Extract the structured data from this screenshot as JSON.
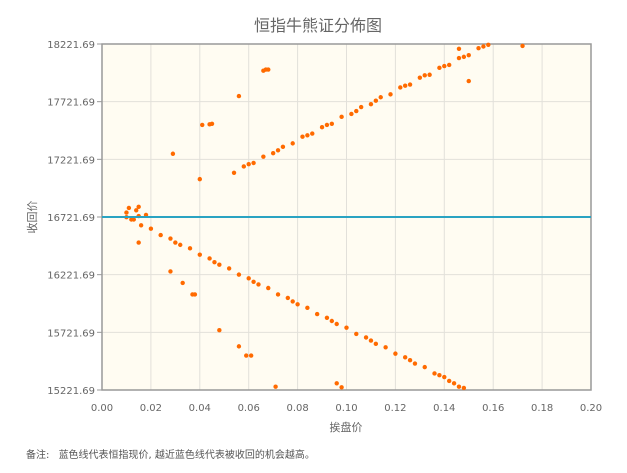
{
  "chart_data": {
    "type": "scatter",
    "title": "恒指牛熊证分佈图",
    "xlabel": "挨盘价",
    "ylabel": "收回价",
    "xlim": [
      0,
      0.2
    ],
    "ylim": [
      15221.69,
      18221.69
    ],
    "xticks": [
      "0.00",
      "0.02",
      "0.04",
      "0.06",
      "0.08",
      "0.10",
      "0.12",
      "0.14",
      "0.16",
      "0.18",
      "0.20"
    ],
    "yticks": [
      "15221.69",
      "15721.69",
      "16221.69",
      "16721.69",
      "17221.69",
      "17721.69",
      "18221.69"
    ],
    "grid": true,
    "reference_line": {
      "y": 16721.69,
      "color": "#2aa3c2"
    },
    "point_color": "#ff6a00",
    "background_color": "#fffcf2",
    "points": [
      [
        0.054,
        17105
      ],
      [
        0.058,
        17160
      ],
      [
        0.062,
        17190
      ],
      [
        0.066,
        17245
      ],
      [
        0.07,
        17275
      ],
      [
        0.074,
        17330
      ],
      [
        0.078,
        17360
      ],
      [
        0.082,
        17418
      ],
      [
        0.086,
        17445
      ],
      [
        0.09,
        17500
      ],
      [
        0.094,
        17530
      ],
      [
        0.098,
        17590
      ],
      [
        0.102,
        17615
      ],
      [
        0.106,
        17675
      ],
      [
        0.11,
        17700
      ],
      [
        0.114,
        17760
      ],
      [
        0.118,
        17785
      ],
      [
        0.122,
        17845
      ],
      [
        0.126,
        17870
      ],
      [
        0.13,
        17930
      ],
      [
        0.134,
        17955
      ],
      [
        0.138,
        18015
      ],
      [
        0.142,
        18040
      ],
      [
        0.146,
        18100
      ],
      [
        0.15,
        18125
      ],
      [
        0.154,
        18185
      ],
      [
        0.158,
        18215
      ],
      [
        0.06,
        17180
      ],
      [
        0.072,
        17300
      ],
      [
        0.084,
        17430
      ],
      [
        0.092,
        17520
      ],
      [
        0.104,
        17640
      ],
      [
        0.112,
        17730
      ],
      [
        0.124,
        17860
      ],
      [
        0.132,
        17950
      ],
      [
        0.14,
        18030
      ],
      [
        0.148,
        18110
      ],
      [
        0.156,
        18200
      ],
      [
        0.012,
        16700
      ],
      [
        0.016,
        16650
      ],
      [
        0.02,
        16620
      ],
      [
        0.024,
        16565
      ],
      [
        0.028,
        16535
      ],
      [
        0.032,
        16480
      ],
      [
        0.036,
        16450
      ],
      [
        0.04,
        16395
      ],
      [
        0.044,
        16362
      ],
      [
        0.048,
        16308
      ],
      [
        0.052,
        16276
      ],
      [
        0.056,
        16222
      ],
      [
        0.06,
        16190
      ],
      [
        0.064,
        16137
      ],
      [
        0.068,
        16106
      ],
      [
        0.072,
        16050
      ],
      [
        0.076,
        16020
      ],
      [
        0.08,
        15965
      ],
      [
        0.084,
        15934
      ],
      [
        0.088,
        15880
      ],
      [
        0.092,
        15848
      ],
      [
        0.096,
        15794
      ],
      [
        0.1,
        15762
      ],
      [
        0.104,
        15708
      ],
      [
        0.108,
        15677
      ],
      [
        0.112,
        15622
      ],
      [
        0.116,
        15592
      ],
      [
        0.12,
        15537
      ],
      [
        0.124,
        15505
      ],
      [
        0.128,
        15451
      ],
      [
        0.132,
        15420
      ],
      [
        0.136,
        15365
      ],
      [
        0.14,
        15334
      ],
      [
        0.144,
        15280
      ],
      [
        0.148,
        15240
      ],
      [
        0.03,
        16500
      ],
      [
        0.046,
        16330
      ],
      [
        0.062,
        16160
      ],
      [
        0.078,
        15990
      ],
      [
        0.094,
        15820
      ],
      [
        0.11,
        15650
      ],
      [
        0.126,
        15480
      ],
      [
        0.138,
        15350
      ],
      [
        0.142,
        15300
      ],
      [
        0.146,
        15250
      ],
      [
        0.01,
        16720
      ],
      [
        0.01,
        16760
      ],
      [
        0.011,
        16800
      ],
      [
        0.013,
        16700
      ],
      [
        0.014,
        16780
      ],
      [
        0.015,
        16810
      ],
      [
        0.015,
        16730
      ],
      [
        0.018,
        16740
      ],
      [
        0.029,
        17270
      ],
      [
        0.04,
        17050
      ],
      [
        0.041,
        17520
      ],
      [
        0.044,
        17525
      ],
      [
        0.045,
        17530
      ],
      [
        0.056,
        17770
      ],
      [
        0.066,
        17990
      ],
      [
        0.067,
        18000
      ],
      [
        0.068,
        18000
      ],
      [
        0.172,
        18205
      ],
      [
        0.15,
        17900
      ],
      [
        0.146,
        18180
      ],
      [
        0.015,
        16500
      ],
      [
        0.028,
        16250
      ],
      [
        0.033,
        16150
      ],
      [
        0.037,
        16050
      ],
      [
        0.038,
        16050
      ],
      [
        0.048,
        15740
      ],
      [
        0.056,
        15600
      ],
      [
        0.059,
        15520
      ],
      [
        0.061,
        15520
      ],
      [
        0.071,
        15250
      ],
      [
        0.096,
        15280
      ],
      [
        0.098,
        15245
      ]
    ]
  },
  "footer": {
    "label": "备注:",
    "text": "蓝色线代表恒指现价, 越近蓝色线代表被收回的机会越高。"
  }
}
